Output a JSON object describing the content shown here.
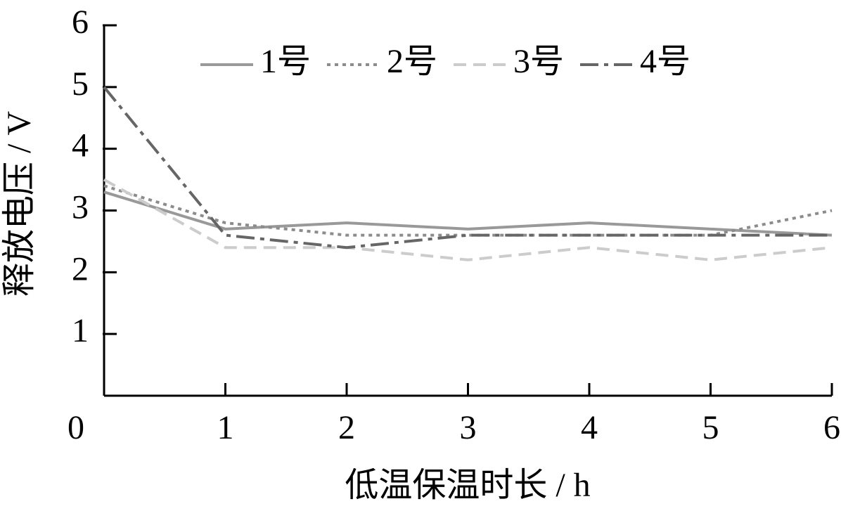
{
  "chart_data": {
    "type": "line",
    "x_label": "低温保温时长 / h",
    "y_label": "释放电压 / V",
    "x": [
      0,
      1,
      2,
      3,
      4,
      5,
      6
    ],
    "xlim": [
      0,
      6
    ],
    "xticks": [
      0,
      1,
      2,
      3,
      4,
      5,
      6
    ],
    "ylim": [
      0,
      6
    ],
    "yticks": [
      1,
      2,
      3,
      4,
      5,
      6
    ],
    "legend": "top",
    "series": [
      {
        "name": "1号",
        "color": "#999999",
        "dash": "solid",
        "values": [
          3.3,
          2.7,
          2.8,
          2.7,
          2.8,
          2.7,
          2.6
        ]
      },
      {
        "name": "2号",
        "color": "#8c8c8c",
        "dash": "dot",
        "values": [
          3.4,
          2.8,
          2.6,
          2.6,
          2.6,
          2.6,
          3.0
        ]
      },
      {
        "name": "3号",
        "color": "#cccccc",
        "dash": "dash",
        "values": [
          3.5,
          2.4,
          2.4,
          2.2,
          2.4,
          2.2,
          2.4
        ]
      },
      {
        "name": "4号",
        "color": "#666666",
        "dash": "dashdot",
        "values": [
          5.0,
          2.6,
          2.4,
          2.6,
          2.6,
          2.6,
          2.6
        ]
      }
    ]
  }
}
